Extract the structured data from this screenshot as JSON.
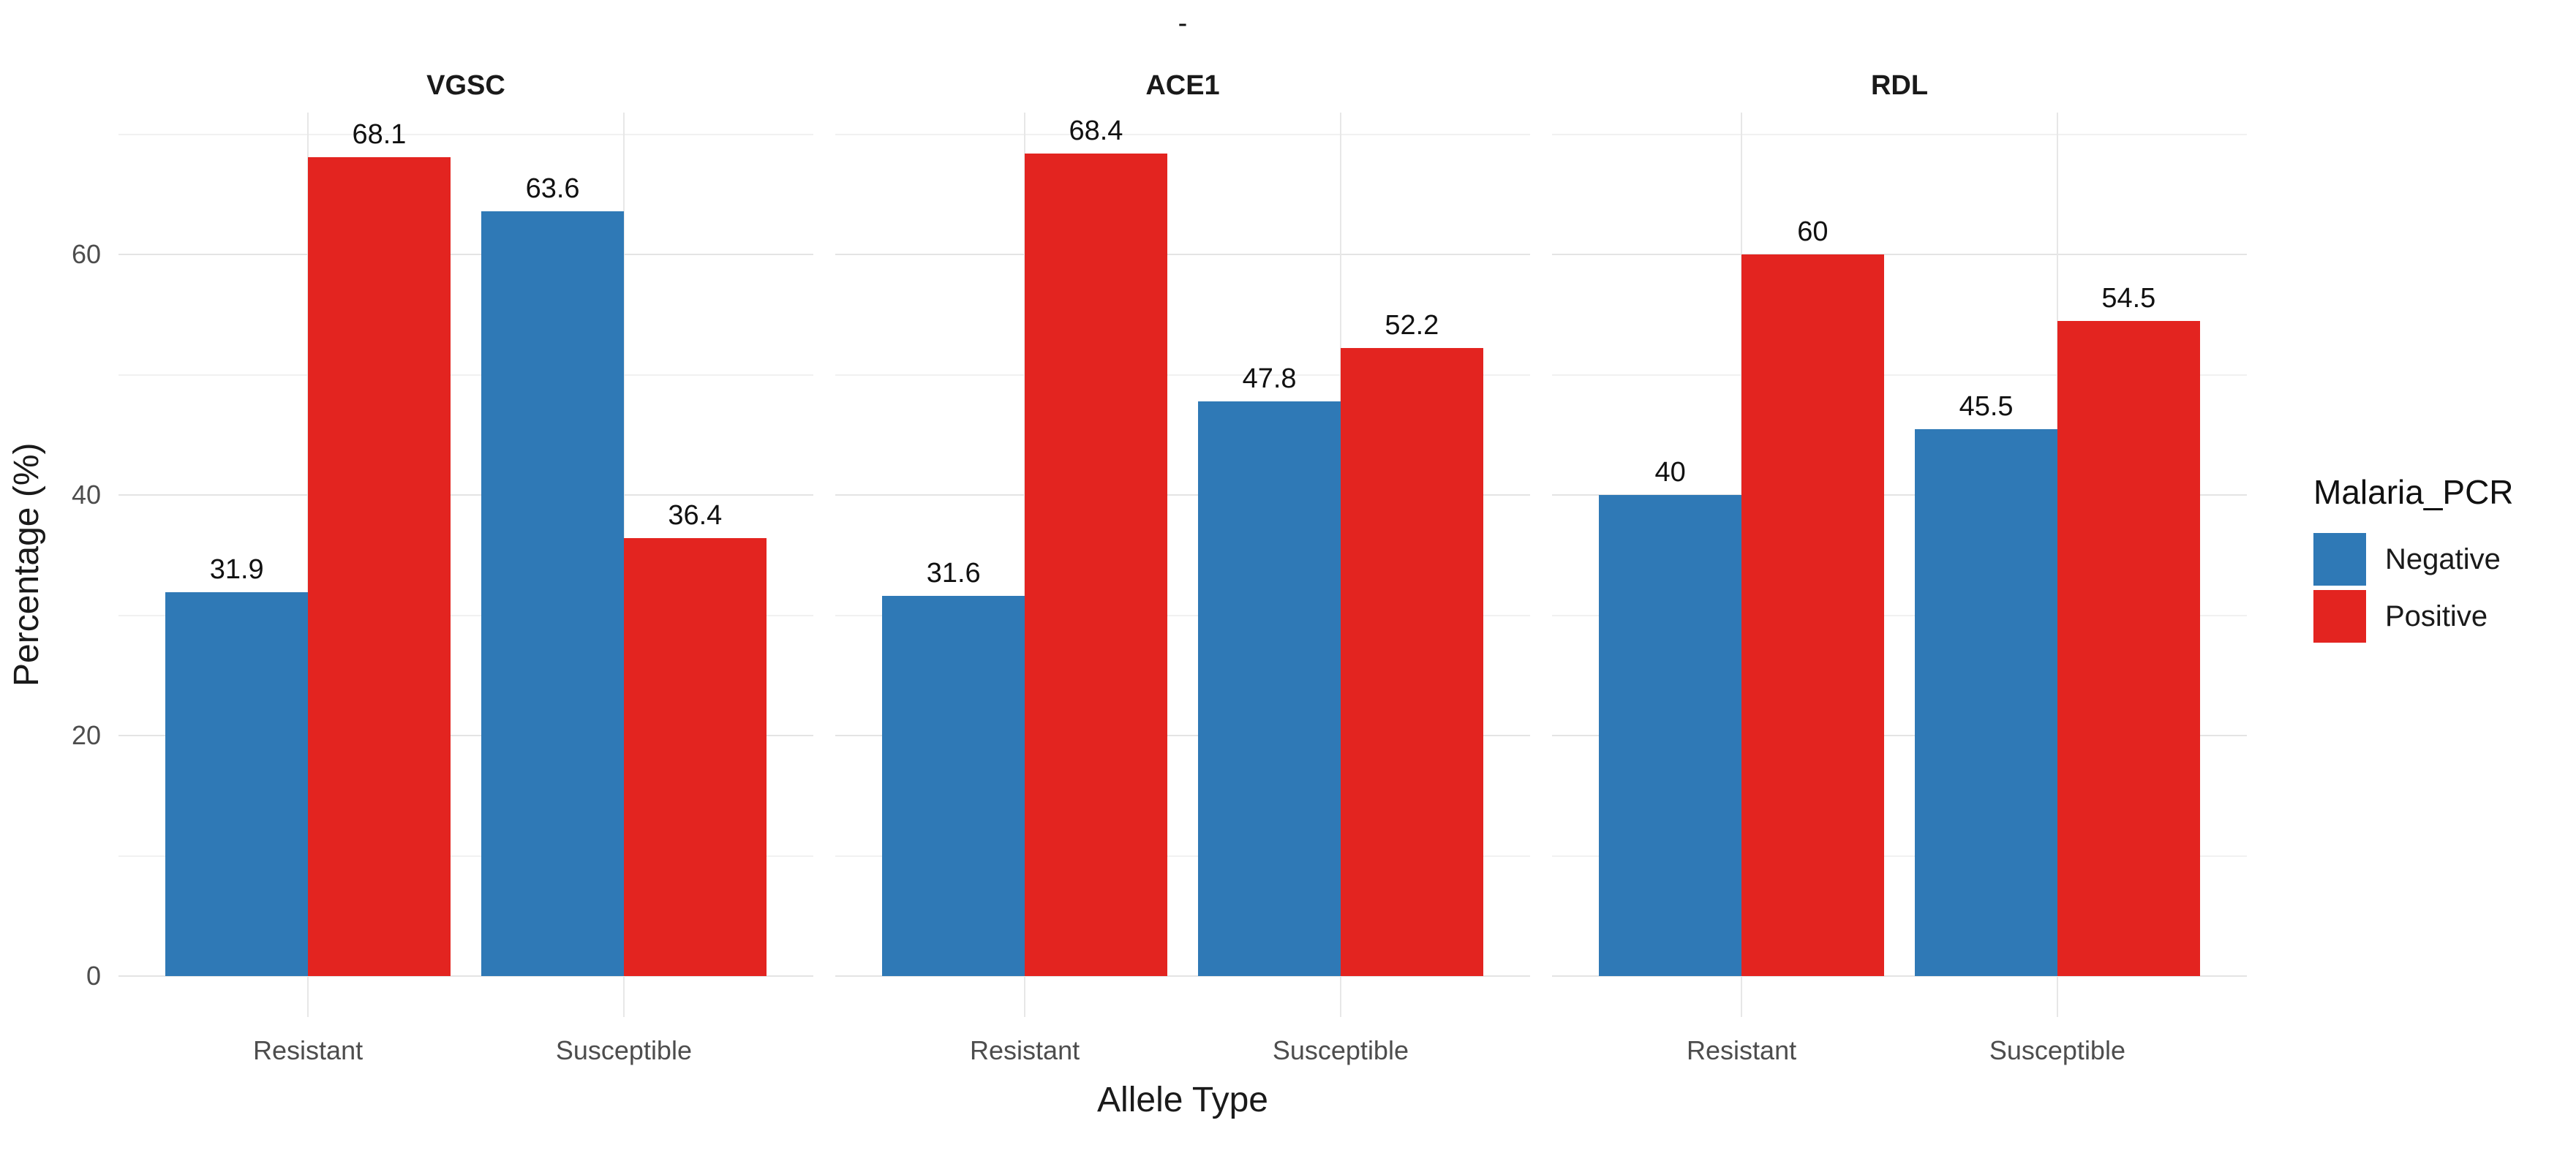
{
  "chart_data": {
    "type": "bar",
    "title": "-",
    "xlabel": "Allele Type",
    "ylabel": "Percentage (%)",
    "yticks": [
      0,
      20,
      40,
      60
    ],
    "yminor": [
      10,
      30,
      50,
      70
    ],
    "ylim": [
      -3.4,
      71.8
    ],
    "grid": "on",
    "legend_position": "right",
    "facets": [
      {
        "label": "VGSC",
        "categories": [
          "Resistant",
          "Susceptible"
        ],
        "series": [
          {
            "name": "Negative",
            "values": [
              31.9,
              63.6
            ]
          },
          {
            "name": "Positive",
            "values": [
              68.1,
              36.4
            ]
          }
        ]
      },
      {
        "label": "ACE1",
        "categories": [
          "Resistant",
          "Susceptible"
        ],
        "series": [
          {
            "name": "Negative",
            "values": [
              31.6,
              47.8
            ]
          },
          {
            "name": "Positive",
            "values": [
              68.4,
              52.2
            ]
          }
        ]
      },
      {
        "label": "RDL",
        "categories": [
          "Resistant",
          "Susceptible"
        ],
        "series": [
          {
            "name": "Negative",
            "values": [
              40,
              45.5
            ]
          },
          {
            "name": "Positive",
            "values": [
              60,
              54.5
            ]
          }
        ]
      }
    ],
    "colors": {
      "Negative": "#2F79B6",
      "Positive": "#E32420"
    },
    "legend": {
      "title": "Malaria_PCR",
      "entries": [
        {
          "label": "Negative",
          "color": "#2F79B6"
        },
        {
          "label": "Positive",
          "color": "#E32420"
        }
      ]
    }
  }
}
